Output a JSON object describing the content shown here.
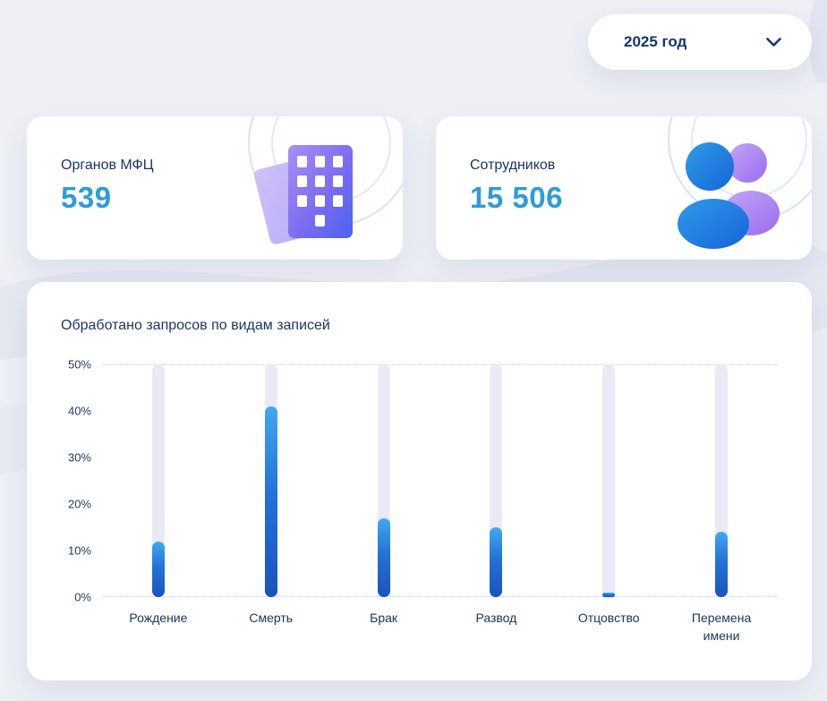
{
  "header": {
    "year_selector": {
      "label": "2025 год",
      "icon": "chevron-down-icon"
    }
  },
  "stat_cards": [
    {
      "label": "Органов МФЦ",
      "value": "539",
      "icon": "building-icon"
    },
    {
      "label": "Сотрудников",
      "value": "15 506",
      "icon": "people-icon"
    }
  ],
  "chart_data": {
    "type": "bar",
    "title": "Обработано запросов по видам записей",
    "categories": [
      "Рождение",
      "Смерть",
      "Брак",
      "Развод",
      "Отцовство",
      "Перемена имени"
    ],
    "values": [
      12,
      41,
      17,
      15,
      1,
      14
    ],
    "unit": "%",
    "ylim": [
      0,
      50
    ],
    "ytick_labels": [
      "0%",
      "10%",
      "20%",
      "30%",
      "40%",
      "50%"
    ],
    "grid": "dotted horizontal lines at 0% and 50%",
    "legend": "none"
  },
  "colors": {
    "background": "#EDEFF5",
    "card": "#FFFFFF",
    "text_navy": "#16355F",
    "accent_blue": "#2D9CDB",
    "bar_track": "#E9EAF5",
    "bar_fill_top": "#41A8F0",
    "bar_fill_bottom": "#1C53BD",
    "icon_purple": "#9B7BF0",
    "icon_blue": "#2F80ED"
  }
}
